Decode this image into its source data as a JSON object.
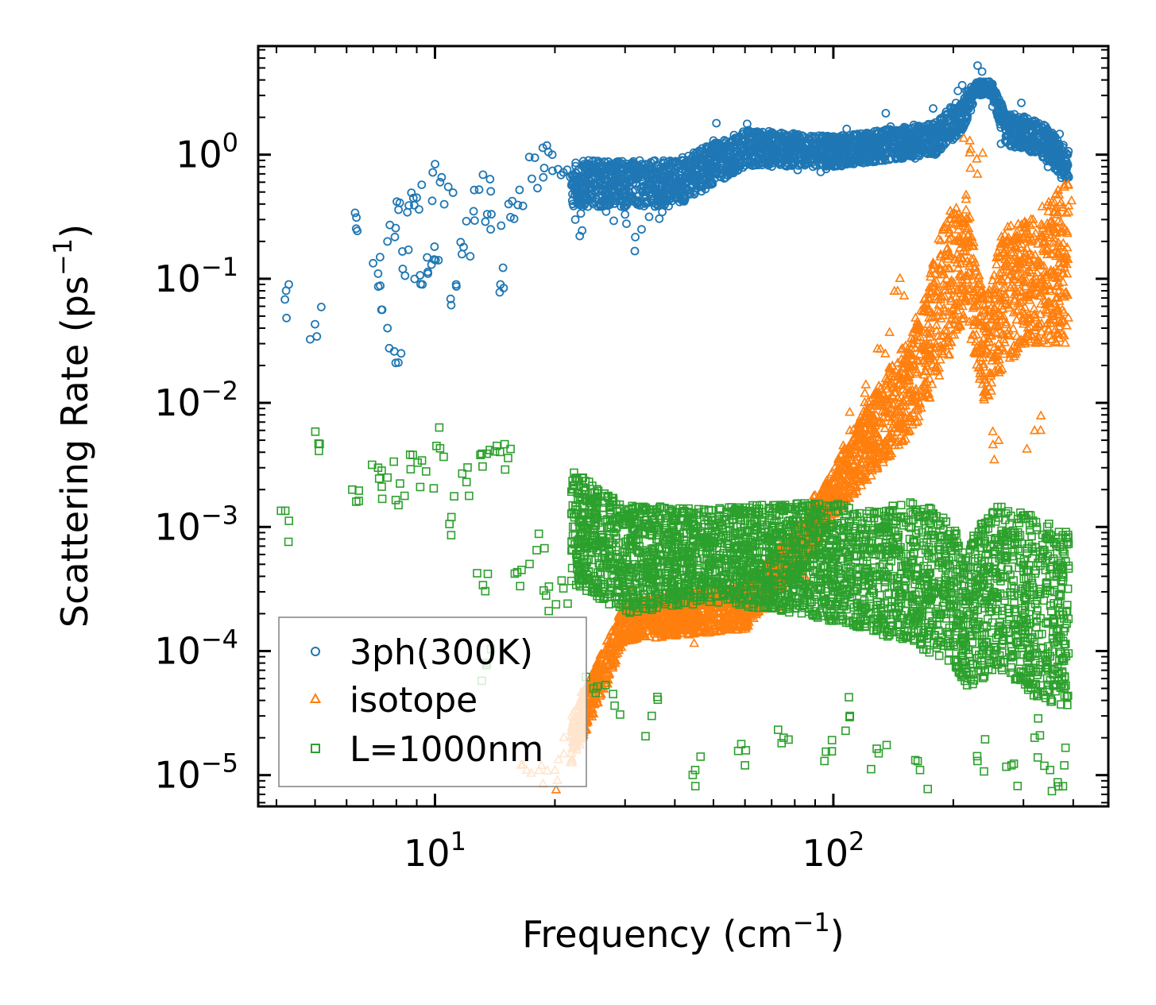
{
  "chart_data": {
    "type": "scatter",
    "title": "",
    "xlabel": "Frequency (cm",
    "xlabel_sup": "−1",
    "xlabel_tail": ")",
    "ylabel": "Scattering Rate (ps",
    "ylabel_sup": "−1",
    "ylabel_tail": ")",
    "xscale": "log",
    "yscale": "log",
    "xlim": [
      3.6,
      490
    ],
    "ylim": [
      5.6e-06,
      7.5
    ],
    "x_ticks": [
      {
        "value": 10,
        "base": "10",
        "exp": "1"
      },
      {
        "value": 100,
        "base": "10",
        "exp": "2"
      }
    ],
    "y_ticks": [
      {
        "value": 1,
        "base": "10",
        "exp": "0"
      },
      {
        "value": 0.1,
        "base": "10",
        "exp": "−1"
      },
      {
        "value": 0.01,
        "base": "10",
        "exp": "−2"
      },
      {
        "value": 0.001,
        "base": "10",
        "exp": "−3"
      },
      {
        "value": 0.0001,
        "base": "10",
        "exp": "−4"
      },
      {
        "value": 1e-05,
        "base": "10",
        "exp": "−5"
      }
    ],
    "legend_position": "lower-left",
    "series": [
      {
        "name": "3ph(300K)",
        "marker": "circle",
        "color": "#1f77b4",
        "anchor_points": [
          [
            4.2,
            0.068
          ],
          [
            5.0,
            0.043
          ],
          [
            6.3,
            0.34
          ],
          [
            7.2,
            0.11
          ],
          [
            7.6,
            0.2
          ],
          [
            7.6,
            0.04
          ],
          [
            7.9,
            0.026
          ],
          [
            8.1,
            0.36
          ],
          [
            8.3,
            0.12
          ],
          [
            8.6,
            0.39
          ],
          [
            9.0,
            0.45
          ],
          [
            9.3,
            0.09
          ],
          [
            9.6,
            0.11
          ],
          [
            9.8,
            0.13
          ],
          [
            10.3,
            0.6
          ],
          [
            10.8,
            0.55
          ],
          [
            11.3,
            0.09
          ],
          [
            11.8,
            0.18
          ],
          [
            12.5,
            0.35
          ],
          [
            13.2,
            0.69
          ],
          [
            13.8,
            0.25
          ],
          [
            14.6,
            0.09
          ],
          [
            15.3,
            0.4
          ],
          [
            16.3,
            0.52
          ],
          [
            17.5,
            0.64
          ],
          [
            18.8,
            0.78
          ],
          [
            19.7,
            1.0
          ],
          [
            21.0,
            0.72
          ],
          [
            22.5,
            0.3
          ],
          [
            24.5,
            0.55
          ],
          [
            27.0,
            0.42
          ],
          [
            30.0,
            0.33
          ],
          [
            33.0,
            0.25
          ],
          [
            36.0,
            0.42
          ],
          [
            40.0,
            0.5
          ],
          [
            45.0,
            0.75
          ],
          [
            50.0,
            1.3
          ],
          [
            55.0,
            1.1
          ],
          [
            62.0,
            1.5
          ],
          [
            70.0,
            1.2
          ],
          [
            80.0,
            1.0
          ],
          [
            92.0,
            0.95
          ],
          [
            105.0,
            1.1
          ],
          [
            120.0,
            1.2
          ],
          [
            140.0,
            1.5
          ],
          [
            160.0,
            1.3
          ],
          [
            185.0,
            1.7
          ],
          [
            200.0,
            2.2
          ],
          [
            215.0,
            2.5
          ],
          [
            240.0,
            3.5
          ],
          [
            270.0,
            1.6
          ],
          [
            300.0,
            1.8
          ],
          [
            330.0,
            1.4
          ],
          [
            360.0,
            1.1
          ],
          [
            385.0,
            0.8
          ]
        ],
        "band": [
          [
            22,
            0.38,
            0.9
          ],
          [
            40,
            0.38,
            0.9
          ],
          [
            60,
            0.8,
            1.6
          ],
          [
            100,
            0.8,
            1.4
          ],
          [
            180,
            1.0,
            1.8
          ],
          [
            210,
            1.5,
            3.0
          ],
          [
            230,
            3.0,
            3.9
          ],
          [
            250,
            3.0,
            3.9
          ],
          [
            270,
            1.2,
            2.2
          ],
          [
            330,
            1.0,
            1.9
          ],
          [
            390,
            0.6,
            1.1
          ]
        ]
      },
      {
        "name": "isotope",
        "marker": "triangle",
        "color": "#ff7f0e",
        "anchor_points": [
          [
            17.0,
            1.1e-05
          ],
          [
            18.5,
            1.2e-05
          ],
          [
            20.0,
            1.1e-05
          ],
          [
            22.0,
            1.5e-05
          ],
          [
            24.0,
            3.5e-05
          ],
          [
            26.0,
            8e-05
          ],
          [
            28.0,
            0.00013
          ],
          [
            31.0,
            0.00022
          ],
          [
            35.0,
            0.00018
          ],
          [
            40.0,
            0.00025
          ],
          [
            45.0,
            0.00014
          ],
          [
            50.0,
            0.00024
          ],
          [
            60.0,
            0.0002
          ],
          [
            70.0,
            0.00026
          ],
          [
            85.0,
            0.0004
          ],
          [
            90.0,
            0.0018
          ],
          [
            100.0,
            0.0025
          ],
          [
            110.0,
            0.006
          ],
          [
            120.0,
            0.012
          ],
          [
            135.0,
            0.025
          ],
          [
            145.0,
            0.08
          ],
          [
            160.0,
            0.04
          ],
          [
            175.0,
            0.03
          ],
          [
            190.0,
            0.25
          ],
          [
            200.0,
            0.08
          ],
          [
            220.0,
            1.3
          ],
          [
            230.0,
            0.7
          ],
          [
            240.0,
            0.025
          ],
          [
            260.0,
            0.005
          ],
          [
            280.0,
            0.18
          ],
          [
            300.0,
            0.12
          ],
          [
            320.0,
            0.006
          ],
          [
            340.0,
            0.08
          ],
          [
            360.0,
            0.25
          ],
          [
            380.0,
            0.55
          ]
        ],
        "band": [
          [
            22,
            1.2e-05,
            3e-05
          ],
          [
            30,
            0.00012,
            0.00025
          ],
          [
            60,
            0.00015,
            0.00035
          ],
          [
            85,
            0.0005,
            0.0012
          ],
          [
            100,
            0.0012,
            0.003
          ],
          [
            130,
            0.003,
            0.015
          ],
          [
            160,
            0.006,
            0.04
          ],
          [
            190,
            0.02,
            0.3
          ],
          [
            215,
            0.05,
            0.5
          ],
          [
            240,
            0.01,
            0.06
          ],
          [
            270,
            0.02,
            0.3
          ],
          [
            310,
            0.03,
            0.3
          ],
          [
            360,
            0.03,
            0.5
          ],
          [
            390,
            0.03,
            0.6
          ]
        ]
      },
      {
        "name": "L=1000nm",
        "marker": "square",
        "color": "#2ca02c",
        "anchor_points": [
          [
            4.3,
            0.00112
          ],
          [
            5.1,
            0.0047
          ],
          [
            6.2,
            0.002
          ],
          [
            7.2,
            0.003
          ],
          [
            7.6,
            0.0025
          ],
          [
            8.1,
            0.0015
          ],
          [
            8.8,
            0.0038
          ],
          [
            9.5,
            0.0028
          ],
          [
            10.3,
            0.0043
          ],
          [
            11.0,
            0.0012
          ],
          [
            12.0,
            0.0023
          ],
          [
            13.0,
            0.0038
          ],
          [
            13.2,
            0.00034
          ],
          [
            13.5,
            8e-05
          ],
          [
            14.3,
            0.0045
          ],
          [
            15.0,
            0.0029
          ],
          [
            16.5,
            0.00045
          ],
          [
            18.0,
            0.00065
          ],
          [
            19.0,
            0.00028
          ],
          [
            21.0,
            0.00032
          ],
          [
            23.0,
            0.0008
          ],
          [
            25.0,
            5e-05
          ],
          [
            28.0,
            4.5e-05
          ],
          [
            35.0,
            3e-05
          ],
          [
            45.0,
            1.1e-05
          ],
          [
            60.0,
            1.2e-05
          ],
          [
            75.0,
            2e-05
          ],
          [
            95.0,
            1.3e-05
          ],
          [
            110.0,
            3e-05
          ],
          [
            130.0,
            1.5e-05
          ],
          [
            165.0,
            1.1e-05
          ],
          [
            230.0,
            1.3e-05
          ],
          [
            280.0,
            1.2e-05
          ],
          [
            320.0,
            2e-05
          ],
          [
            350.0,
            1.1e-05
          ],
          [
            380.0,
            1.2e-05
          ]
        ],
        "band": [
          [
            22,
            0.00035,
            0.003
          ],
          [
            30,
            0.0002,
            0.0015
          ],
          [
            50,
            0.00025,
            0.0014
          ],
          [
            80,
            0.0002,
            0.0016
          ],
          [
            120,
            0.00015,
            0.0015
          ],
          [
            170,
            0.0001,
            0.0016
          ],
          [
            200,
            8e-05,
            0.001
          ],
          [
            215,
            5e-05,
            0.0008
          ],
          [
            260,
            7e-05,
            0.0015
          ],
          [
            330,
            4e-05,
            0.0012
          ],
          [
            390,
            3e-05,
            0.0009
          ]
        ]
      }
    ]
  },
  "legend": {
    "items": [
      {
        "label": "3ph(300K)",
        "marker": "circle",
        "color": "#1f77b4"
      },
      {
        "label": "isotope",
        "marker": "triangle",
        "color": "#ff7f0e"
      },
      {
        "label": "L=1000nm",
        "marker": "square",
        "color": "#2ca02c"
      }
    ]
  }
}
